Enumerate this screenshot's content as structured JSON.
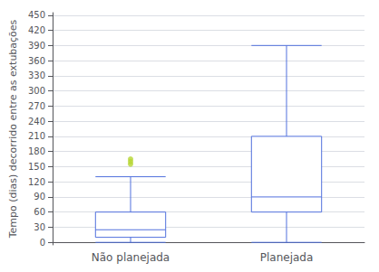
{
  "chart_data": {
    "type": "boxplot",
    "categories": [
      "Não planejada",
      "Planejada"
    ],
    "boxes": [
      {
        "low": 0,
        "q1": 10,
        "median": 25,
        "q3": 60,
        "high": 130,
        "fliers": [
          155,
          160,
          165
        ]
      },
      {
        "low": 0,
        "q1": 60,
        "median": 90,
        "q3": 210,
        "high": 390,
        "fliers": []
      }
    ],
    "ylabel": "Tempo (dias) decorrido entre as extubações",
    "ylim": [
      -5,
      455
    ],
    "yticks": [
      0,
      30,
      60,
      90,
      120,
      150,
      180,
      210,
      240,
      270,
      300,
      330,
      360,
      390,
      420,
      450
    ],
    "grid": true
  }
}
